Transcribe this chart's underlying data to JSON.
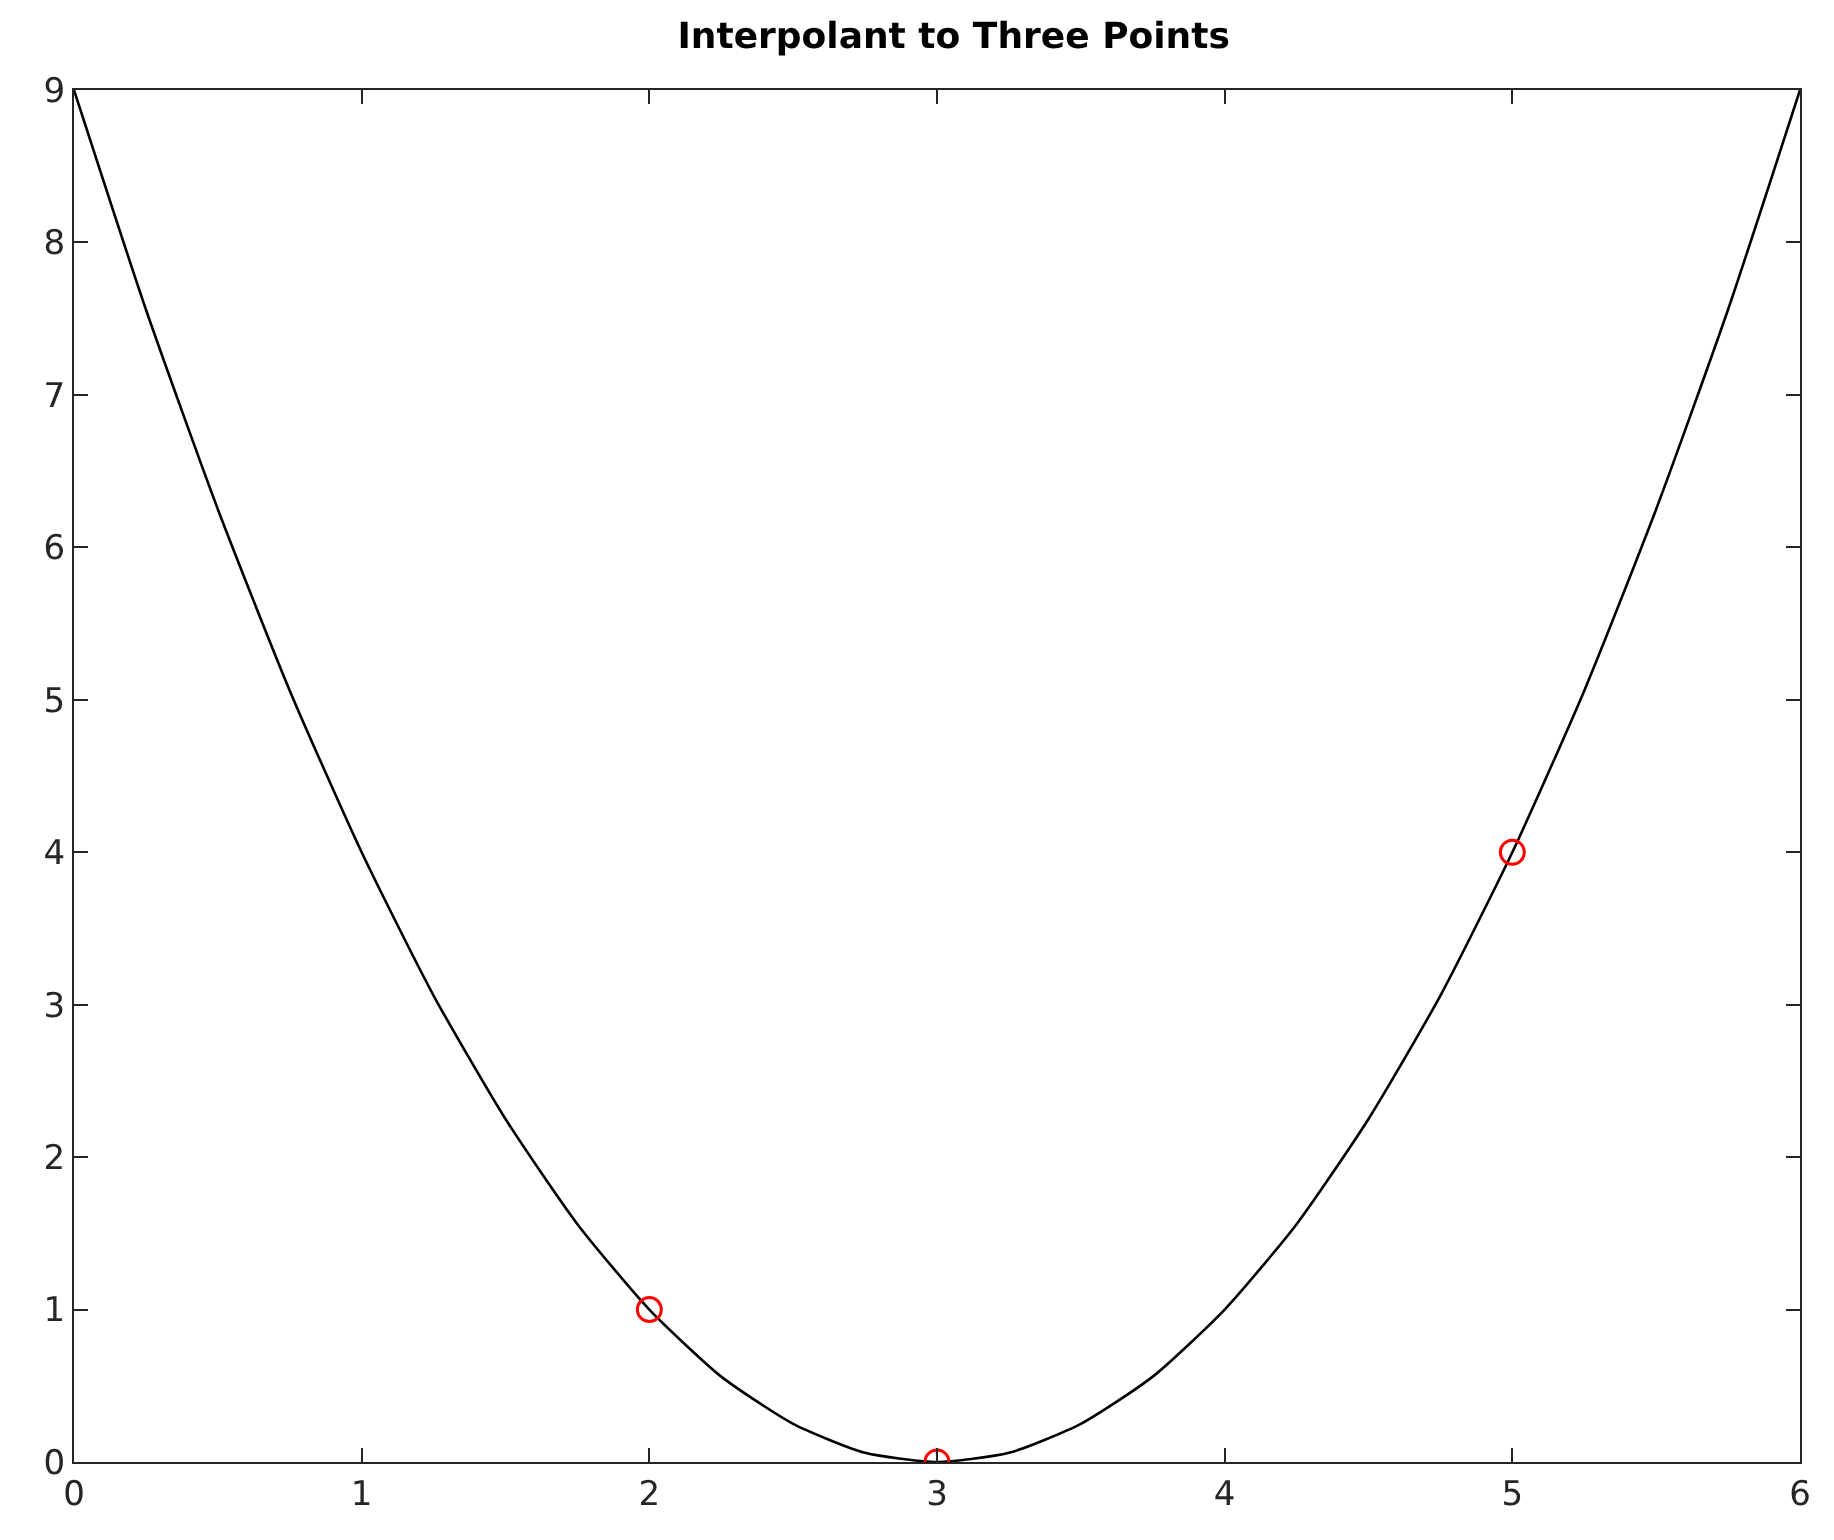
{
  "chart_data": {
    "type": "line",
    "title": "Interpolant to Three Points",
    "xlim": [
      0,
      6
    ],
    "xticks": [
      0,
      1,
      2,
      3,
      4,
      5,
      6
    ],
    "ylim": [
      0,
      9
    ],
    "yticks": [
      0,
      1,
      2,
      3,
      4,
      5,
      6,
      7,
      8,
      9
    ],
    "grid": false,
    "series": [
      {
        "type": "line",
        "color": "#000000",
        "marker": "none",
        "line_style": "solid",
        "x": [
          0,
          0.25,
          0.5,
          0.75,
          1,
          1.25,
          1.5,
          1.75,
          2,
          2.25,
          2.5,
          2.75,
          3,
          3.25,
          3.5,
          3.75,
          4,
          4.25,
          4.5,
          4.75,
          5,
          5.25,
          5.5,
          5.75,
          6
        ],
        "values": [
          9,
          7.56,
          6.25,
          5.06,
          4,
          3.06,
          2.25,
          1.56,
          1,
          0.56,
          0.25,
          0.06,
          0,
          0.06,
          0.25,
          0.56,
          1,
          1.56,
          2.25,
          3.06,
          4,
          5.06,
          6.25,
          7.56,
          9
        ]
      },
      {
        "type": "scatter",
        "color": "#ff0000",
        "marker": "circle",
        "x": [
          2,
          3,
          5
        ],
        "values": [
          1,
          0,
          4
        ]
      }
    ]
  }
}
